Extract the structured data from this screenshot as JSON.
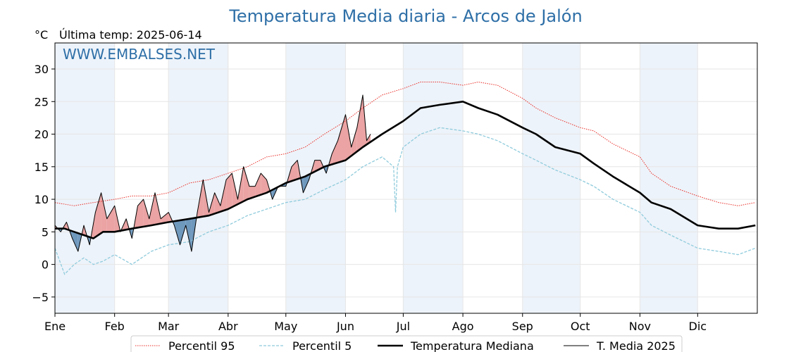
{
  "chart_data": {
    "type": "line",
    "title": "Temperatura Media diaria - Arcos de Jalón",
    "unit_label": "°C",
    "last_temp": "Última temp: 2025-06-14",
    "watermark": "WWW.EMBALSES.NET",
    "ylim": [
      -7.5,
      34
    ],
    "yticks": [
      -5,
      0,
      5,
      10,
      15,
      20,
      25,
      30
    ],
    "xlim": [
      0,
      365
    ],
    "months": [
      {
        "label": "Ene",
        "day": 0
      },
      {
        "label": "Feb",
        "day": 31
      },
      {
        "label": "Mar",
        "day": 59
      },
      {
        "label": "Abr",
        "day": 90
      },
      {
        "label": "May",
        "day": 120
      },
      {
        "label": "Jun",
        "day": 151
      },
      {
        "label": "Jul",
        "day": 181
      },
      {
        "label": "Ago",
        "day": 212
      },
      {
        "label": "Sep",
        "day": 243
      },
      {
        "label": "Oct",
        "day": 273
      },
      {
        "label": "Nov",
        "day": 304
      },
      {
        "label": "Dic",
        "day": 334
      }
    ],
    "grid": true,
    "legend_position": "bottom",
    "colors": {
      "p95": "#e8302a",
      "p5": "#8fcbdc",
      "median": "#000000",
      "current": "#000000",
      "above": "#eba3a3",
      "below": "#6f98bd",
      "band": "#edf3fa",
      "watermark": "#2e6fa7",
      "title": "#2e6fa7"
    },
    "series": [
      {
        "name": "Percentil 95",
        "style": "dotted-red",
        "x": [
          0,
          10,
          20,
          31,
          40,
          50,
          59,
          70,
          80,
          90,
          100,
          110,
          120,
          130,
          140,
          151,
          160,
          170,
          181,
          190,
          200,
          212,
          220,
          230,
          243,
          250,
          260,
          273,
          280,
          290,
          304,
          310,
          320,
          334,
          345,
          355,
          364
        ],
        "y": [
          9.5,
          9,
          9.5,
          10,
          10.5,
          10.5,
          11,
          12.5,
          13,
          14,
          15,
          16.5,
          17,
          18,
          20,
          22,
          24,
          26,
          27,
          28,
          28,
          27.5,
          28,
          27.5,
          25.5,
          24,
          22.5,
          21,
          20.5,
          18.5,
          16.5,
          14,
          12,
          10.5,
          9.5,
          9,
          9.5
        ]
      },
      {
        "name": "Percentil 5",
        "style": "dashed-lightblue",
        "x": [
          0,
          5,
          10,
          15,
          20,
          25,
          31,
          40,
          50,
          59,
          70,
          80,
          90,
          100,
          110,
          120,
          130,
          140,
          151,
          160,
          170,
          176,
          177,
          178,
          181,
          190,
          200,
          212,
          220,
          230,
          243,
          250,
          260,
          273,
          280,
          290,
          304,
          310,
          320,
          334,
          345,
          355,
          364
        ],
        "y": [
          2.5,
          -1.5,
          0,
          1,
          0,
          0.5,
          1.5,
          0,
          2,
          3,
          3.5,
          5,
          6,
          7.5,
          8.5,
          9.5,
          10,
          11.5,
          13,
          15,
          16.5,
          15,
          8,
          15,
          18,
          20,
          21,
          20.5,
          20,
          19,
          17,
          16,
          14.5,
          13,
          12,
          10,
          8,
          6,
          4.5,
          2.5,
          2,
          1.5,
          2.5
        ]
      },
      {
        "name": "Temperatura Mediana",
        "style": "thick-black",
        "x": [
          0,
          5,
          10,
          15,
          20,
          25,
          31,
          40,
          50,
          59,
          70,
          80,
          90,
          100,
          110,
          120,
          130,
          140,
          151,
          160,
          170,
          181,
          190,
          200,
          212,
          220,
          230,
          243,
          250,
          260,
          273,
          280,
          290,
          304,
          310,
          320,
          334,
          345,
          355,
          364
        ],
        "y": [
          5.5,
          5.5,
          5,
          4.5,
          4,
          5,
          5,
          5.5,
          6,
          6.5,
          7,
          7.5,
          8.5,
          10,
          11,
          12.5,
          13.5,
          15,
          16,
          18,
          20,
          22,
          24,
          24.5,
          25,
          24,
          23,
          21,
          20,
          18,
          17,
          15.5,
          13.5,
          11,
          9.5,
          8.5,
          6,
          5.5,
          5.5,
          6
        ]
      },
      {
        "name": "T. Media 2025",
        "style": "thin-black",
        "x": [
          0,
          3,
          6,
          9,
          12,
          15,
          18,
          21,
          24,
          27,
          31,
          34,
          37,
          40,
          43,
          46,
          49,
          52,
          55,
          59,
          62,
          65,
          68,
          71,
          74,
          77,
          80,
          83,
          86,
          89,
          92,
          95,
          98,
          101,
          104,
          107,
          110,
          113,
          116,
          120,
          123,
          126,
          129,
          132,
          135,
          138,
          141,
          144,
          147,
          151,
          154,
          157,
          160,
          162,
          164
        ],
        "y": [
          6,
          5,
          6.5,
          4,
          2,
          6,
          3,
          8,
          11,
          7,
          9,
          5,
          7,
          4,
          9,
          10,
          7,
          11,
          7,
          8,
          6,
          3,
          6,
          2,
          8,
          13,
          8,
          11,
          9,
          13,
          14,
          10,
          15,
          12,
          12,
          14,
          13,
          10,
          12,
          12,
          15,
          16,
          11,
          13,
          16,
          16,
          14,
          17,
          19,
          23,
          18,
          21,
          26,
          19,
          20
        ]
      }
    ],
    "legend": [
      {
        "label": "Percentil 95",
        "style": "dotted-red"
      },
      {
        "label": "Percentil 5",
        "style": "dashed-lightblue"
      },
      {
        "label": "Temperatura Mediana",
        "style": "thick-black"
      },
      {
        "label": "T. Media 2025",
        "style": "thin-black"
      }
    ]
  }
}
